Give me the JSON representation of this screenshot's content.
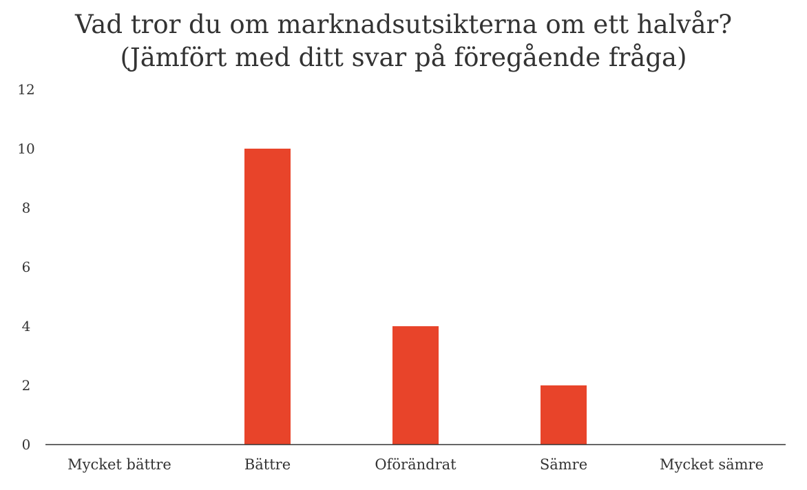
{
  "chart_data": {
    "type": "bar",
    "title": "Vad tror du om marknadsutsikterna om ett halvår?",
    "subtitle": "(Jämfört med ditt svar på föregående fråga)",
    "categories": [
      "Mycket bättre",
      "Bättre",
      "Oförändrat",
      "Sämre",
      "Mycket sämre"
    ],
    "values": [
      0,
      10,
      4,
      2,
      0
    ],
    "ylim": [
      0,
      12
    ],
    "yticks": [
      0,
      2,
      4,
      6,
      8,
      10,
      12
    ],
    "grid": false,
    "legend": "none",
    "bar_color": "#e8442a",
    "axis_color": "#333333"
  }
}
